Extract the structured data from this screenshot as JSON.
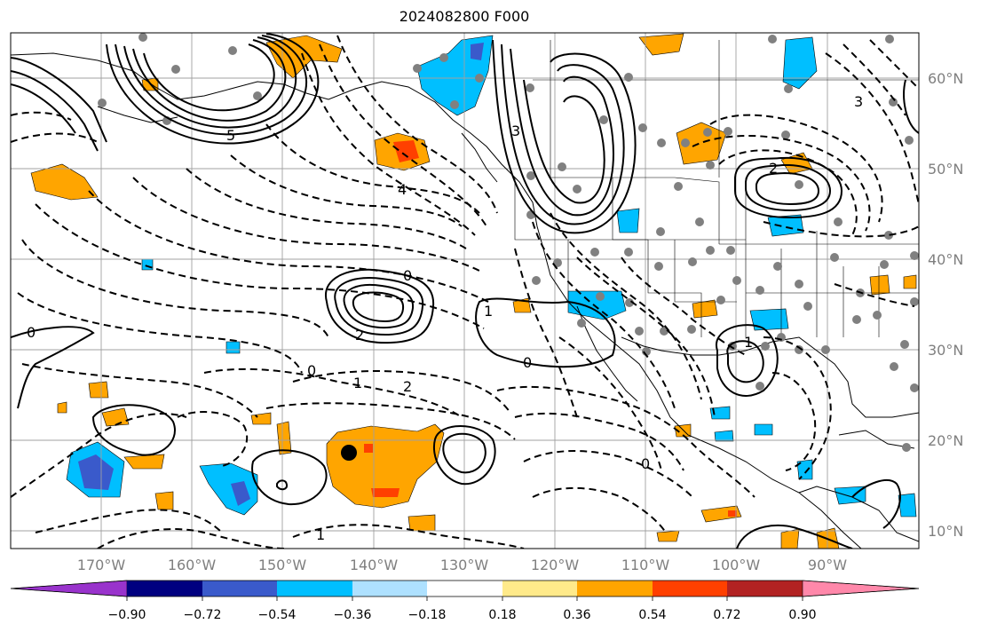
{
  "title": "2024082800 F000",
  "lat_labels": [
    "60°N",
    "50°N",
    "40°N",
    "30°N",
    "20°N",
    "10°N"
  ],
  "lon_labels": [
    "170°W",
    "160°W",
    "150°W",
    "140°W",
    "130°W",
    "120°W",
    "110°W",
    "100°W",
    "90°W"
  ],
  "contour_labels": {
    "l_neg4": "4",
    "l_neg3": "3",
    "l_neg2": "2",
    "l_neg1": "1",
    "l_0a": "0",
    "l_0b": "0",
    "l_0c": "0",
    "l_0d": "0",
    "l_0e": "0",
    "l_1a": "1",
    "l_1b": "1",
    "l_1c": "1",
    "l_2a": "2",
    "l_2b": "2",
    "l_3": "3",
    "l_5": "5"
  },
  "colorbar": {
    "colors": [
      "#9933cc",
      "#000080",
      "#3a5acb",
      "#00bfff",
      "#aee1ff",
      "#ffffff",
      "#ffea8a",
      "#ffa500",
      "#ff4000",
      "#b22222",
      "#ff88aa"
    ],
    "tick_labels": [
      "−0.90",
      "−0.72",
      "−0.54",
      "−0.36",
      "−0.18",
      "0.18",
      "0.36",
      "0.54",
      "0.72",
      "0.90"
    ]
  }
}
